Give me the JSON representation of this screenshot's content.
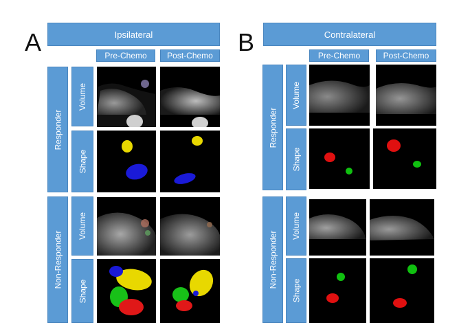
{
  "panels": [
    {
      "letter": "A",
      "header": "Ipsilateral",
      "columns": [
        "Pre-Chemo",
        "Post-Chemo"
      ],
      "groups": [
        "Responder",
        "Non-Responder"
      ],
      "rows": [
        "Volume",
        "Shape",
        "Volume",
        "Shape"
      ]
    },
    {
      "letter": "B",
      "header": "Contralateral",
      "columns": [
        "Pre-Chemo",
        "Post-Chemo"
      ],
      "groups": [
        "Responder",
        "Non-Responder"
      ],
      "rows": [
        "Volume",
        "Shape",
        "Volume",
        "Shape"
      ]
    }
  ],
  "colors": {
    "header_blue": "#5b9bd5",
    "shape_yellow": "#e8d800",
    "shape_blue": "#1010d0",
    "shape_red": "#e01010",
    "shape_green": "#10c010"
  }
}
